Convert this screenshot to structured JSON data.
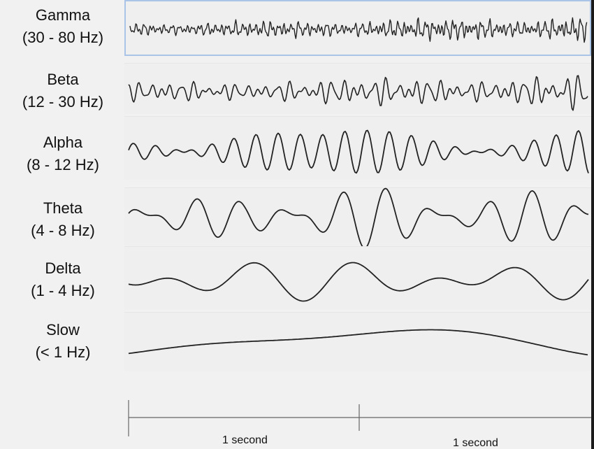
{
  "bands": [
    {
      "id": "gamma",
      "name": "Gamma",
      "range": "(30 - 80 Hz)"
    },
    {
      "id": "beta",
      "name": "Beta",
      "range": "(12 - 30 Hz)"
    },
    {
      "id": "alpha",
      "name": "Alpha",
      "range": "(8 - 12 Hz)"
    },
    {
      "id": "theta",
      "name": "Theta",
      "range": "(4 - 8 Hz)"
    },
    {
      "id": "delta",
      "name": "Delta",
      "range": "(1 - 4 Hz)"
    },
    {
      "id": "slow",
      "name": "Slow",
      "range": "(< 1 Hz)"
    }
  ],
  "scale": {
    "label_1": "1 second",
    "label_2": "1 second"
  },
  "colors": {
    "trace": "#222222",
    "selection": "#a9c4e6",
    "background": "#f1f1f1"
  }
}
